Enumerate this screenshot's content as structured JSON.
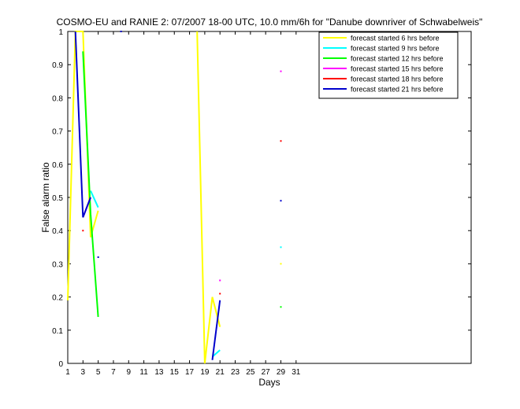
{
  "chart_data": {
    "type": "line",
    "title": "COSMO-EU and RANIE 2: 07/2007 18-00 UTC, 10.0 mm/6h for \"Danube downriver of Schwabelweis\"",
    "xlabel": "Days",
    "ylabel": "False alarm ratio",
    "xlim": [
      1,
      54
    ],
    "ylim": [
      0,
      1
    ],
    "xticks": [
      1,
      3,
      5,
      7,
      9,
      11,
      13,
      15,
      17,
      19,
      21,
      23,
      25,
      27,
      29,
      31
    ],
    "yticks": [
      0,
      0.1,
      0.2,
      0.3,
      0.4,
      0.5,
      0.6,
      0.7,
      0.8,
      0.9,
      1
    ],
    "grid": false,
    "legend_position": "top-right",
    "series": [
      {
        "name": "forecast started 6 hrs before",
        "color": "#ffff00",
        "segments": [
          [
            [
              1,
              0.19
            ],
            [
              2,
              1
            ],
            [
              3,
              1
            ],
            [
              4,
              0.38
            ],
            [
              5,
              0.46
            ]
          ],
          [
            [
              18,
              1
            ],
            [
              19,
              0
            ],
            [
              20,
              0.2
            ],
            [
              21,
              0.11
            ]
          ]
        ],
        "points": [
          [
            29,
            0.3
          ]
        ]
      },
      {
        "name": "forecast started 9 hrs before",
        "color": "#00ffff",
        "segments": [
          [
            [
              4,
              0.52
            ],
            [
              5,
              0.47
            ]
          ],
          [
            [
              20,
              0.02
            ],
            [
              21,
              0.04
            ]
          ]
        ],
        "points": [
          [
            29,
            0.35
          ]
        ]
      },
      {
        "name": "forecast started 12 hrs before",
        "color": "#00ff00",
        "segments": [
          [
            [
              3,
              0.94
            ],
            [
              4,
              0.45
            ],
            [
              5,
              0.14
            ]
          ]
        ],
        "points": [
          [
            29,
            0.17
          ]
        ]
      },
      {
        "name": "forecast started 15 hrs before",
        "color": "#ff00ff",
        "segments": [
          [
            [
              3,
              0.44
            ],
            [
              4,
              0.5
            ]
          ]
        ],
        "points": [
          [
            21,
            0.25
          ],
          [
            29,
            0.88
          ]
        ]
      },
      {
        "name": "forecast started 18 hrs before",
        "color": "#ff0000",
        "segments": [],
        "points": [
          [
            3,
            0.4
          ],
          [
            21,
            0.21
          ],
          [
            29,
            0.67
          ]
        ]
      },
      {
        "name": "forecast started 21 hrs before",
        "color": "#0000cc",
        "segments": [
          [
            [
              2,
              1
            ],
            [
              3,
              0.44
            ],
            [
              4,
              0.5
            ]
          ],
          [
            [
              20,
              0.01
            ],
            [
              21,
              0.19
            ]
          ]
        ],
        "points": [
          [
            5,
            0.32
          ],
          [
            8,
            1
          ],
          [
            29,
            0.49
          ]
        ]
      }
    ]
  }
}
